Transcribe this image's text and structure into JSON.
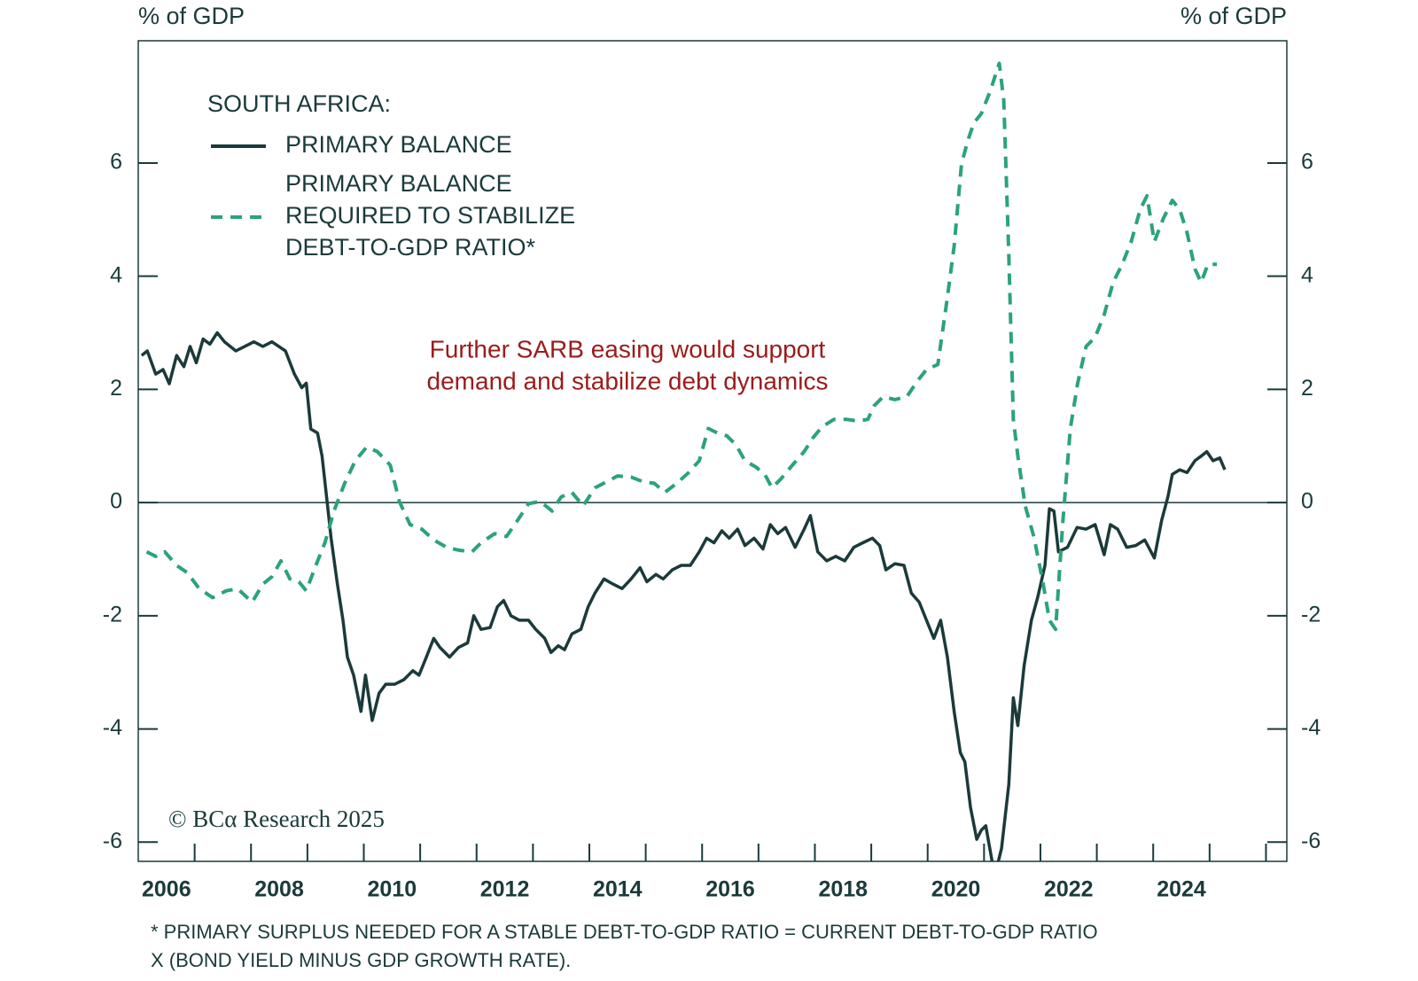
{
  "chart_data": {
    "type": "line",
    "left_axis_label": "% of GDP",
    "right_axis_label": "% of GDP",
    "legend_title": "SOUTH AFRICA:",
    "annotation": [
      "Further SARB easing would support",
      "demand and stabilize debt dynamics"
    ],
    "annotation_color": "#9b1b1b",
    "credit": "© BCα Research 2025",
    "footnote": [
      "* PRIMARY SURPLUS NEEDED FOR A STABLE DEBT-TO-GDP RATIO = CURRENT DEBT-TO-GDP RATIO",
      "X (BOND YIELD MINUS GDP GROWTH RATE)."
    ],
    "xlim": [
      2006,
      2026.37
    ],
    "xticks": [
      2006,
      2008,
      2010,
      2012,
      2014,
      2016,
      2018,
      2020,
      2022,
      2024
    ],
    "xminor_ticks": [
      2007,
      2008,
      2009,
      2010,
      2011,
      2012,
      2013,
      2014,
      2015,
      2016,
      2017,
      2018,
      2019,
      2020,
      2021,
      2022,
      2023,
      2024,
      2025,
      2026
    ],
    "ylim": [
      -6.34,
      8.16
    ],
    "yticks": [
      -6,
      -4,
      -2,
      0,
      2,
      4,
      6
    ],
    "y2lim": [
      -6.34,
      8.16
    ],
    "y2ticks": [
      -6,
      -4,
      -2,
      0,
      2,
      4,
      6
    ],
    "reference_line": 0,
    "series": [
      {
        "name": "PRIMARY BALANCE",
        "color": "#1b3a3a",
        "dashed": false,
        "x": [
          2006.06,
          2006.16,
          2006.31,
          2006.44,
          2006.55,
          2006.68,
          2006.81,
          2006.92,
          2007.03,
          2007.15,
          2007.27,
          2007.4,
          2007.53,
          2007.73,
          2007.89,
          2008.05,
          2008.21,
          2008.37,
          2008.61,
          2008.77,
          2008.9,
          2008.98,
          2009.06,
          2009.18,
          2009.26,
          2009.34,
          2009.42,
          2009.53,
          2009.63,
          2009.71,
          2009.82,
          2009.95,
          2010.03,
          2010.15,
          2010.27,
          2010.39,
          2010.55,
          2010.71,
          2010.87,
          2010.98,
          2011.11,
          2011.24,
          2011.35,
          2011.52,
          2011.68,
          2011.84,
          2011.95,
          2012.08,
          2012.24,
          2012.37,
          2012.48,
          2012.61,
          2012.76,
          2012.92,
          2013.05,
          2013.21,
          2013.32,
          2013.45,
          2013.56,
          2013.69,
          2013.85,
          2013.98,
          2014.1,
          2014.26,
          2014.42,
          2014.58,
          2014.74,
          2014.9,
          2015.02,
          2015.18,
          2015.31,
          2015.47,
          2015.63,
          2015.79,
          2015.95,
          2016.08,
          2016.21,
          2016.35,
          2016.48,
          2016.63,
          2016.76,
          2016.92,
          2017.08,
          2017.21,
          2017.34,
          2017.48,
          2017.65,
          2017.81,
          2017.92,
          2018.05,
          2018.21,
          2018.37,
          2018.53,
          2018.69,
          2018.85,
          2019.02,
          2019.15,
          2019.26,
          2019.42,
          2019.58,
          2019.71,
          2019.85,
          2019.98,
          2020.11,
          2020.23,
          2020.35,
          2020.47,
          2020.58,
          2020.66,
          2020.76,
          2020.87,
          2020.95,
          2021.03,
          2021.19,
          2021.31,
          2021.44,
          2021.52,
          2021.6,
          2021.71,
          2021.84,
          2021.95,
          2022.08,
          2022.16,
          2022.24,
          2022.32,
          2022.48,
          2022.65,
          2022.81,
          2022.97,
          2023.13,
          2023.24,
          2023.37,
          2023.53,
          2023.69,
          2023.85,
          2024.02,
          2024.15,
          2024.26,
          2024.34,
          2024.47,
          2024.6,
          2024.74,
          2024.85,
          2024.95,
          2025.06,
          2025.18,
          2025.27
        ],
        "values": [
          2.6,
          2.68,
          2.27,
          2.35,
          2.1,
          2.6,
          2.4,
          2.76,
          2.47,
          2.89,
          2.8,
          3.0,
          2.84,
          2.68,
          2.76,
          2.84,
          2.76,
          2.84,
          2.68,
          2.27,
          2.03,
          2.11,
          1.3,
          1.23,
          0.82,
          0.1,
          -0.63,
          -1.43,
          -2.08,
          -2.73,
          -3.05,
          -3.69,
          -3.05,
          -3.85,
          -3.37,
          -3.21,
          -3.21,
          -3.13,
          -2.97,
          -3.05,
          -2.73,
          -2.4,
          -2.56,
          -2.73,
          -2.56,
          -2.48,
          -2.0,
          -2.24,
          -2.21,
          -1.84,
          -1.73,
          -2.0,
          -2.08,
          -2.08,
          -2.24,
          -2.4,
          -2.65,
          -2.53,
          -2.6,
          -2.32,
          -2.24,
          -1.84,
          -1.6,
          -1.35,
          -1.44,
          -1.52,
          -1.35,
          -1.15,
          -1.4,
          -1.27,
          -1.35,
          -1.19,
          -1.11,
          -1.11,
          -0.87,
          -0.63,
          -0.71,
          -0.5,
          -0.63,
          -0.47,
          -0.76,
          -0.63,
          -0.82,
          -0.39,
          -0.55,
          -0.44,
          -0.79,
          -0.47,
          -0.23,
          -0.87,
          -1.03,
          -0.95,
          -1.03,
          -0.79,
          -0.71,
          -0.63,
          -0.76,
          -1.19,
          -1.08,
          -1.11,
          -1.6,
          -1.76,
          -2.08,
          -2.4,
          -2.08,
          -2.73,
          -3.69,
          -4.42,
          -4.58,
          -5.39,
          -5.95,
          -5.79,
          -5.71,
          -6.6,
          -6.11,
          -4.98,
          -3.45,
          -3.94,
          -2.89,
          -2.08,
          -1.68,
          -1.11,
          -0.11,
          -0.15,
          -0.87,
          -0.79,
          -0.44,
          -0.47,
          -0.39,
          -0.92,
          -0.39,
          -0.47,
          -0.79,
          -0.76,
          -0.66,
          -0.98,
          -0.31,
          0.1,
          0.5,
          0.58,
          0.53,
          0.74,
          0.82,
          0.9,
          0.74,
          0.79,
          0.58
        ]
      },
      {
        "name": "PRIMARY BALANCE\nREQUIRED TO STABILIZE\nDEBT-TO-GDP RATIO*",
        "color": "#2ba37a",
        "dashed": true,
        "x": [
          2006.15,
          2006.31,
          2006.47,
          2006.68,
          2006.87,
          2007.08,
          2007.32,
          2007.56,
          2007.76,
          2008.02,
          2008.21,
          2008.37,
          2008.53,
          2008.69,
          2008.85,
          2008.98,
          2009.15,
          2009.31,
          2009.47,
          2009.66,
          2009.85,
          2010.05,
          2010.24,
          2010.47,
          2010.63,
          2010.82,
          2011.03,
          2011.24,
          2011.47,
          2011.68,
          2011.92,
          2012.08,
          2012.32,
          2012.53,
          2012.73,
          2012.92,
          2013.13,
          2013.34,
          2013.5,
          2013.69,
          2013.89,
          2014.1,
          2014.31,
          2014.5,
          2014.74,
          2014.95,
          2015.15,
          2015.34,
          2015.55,
          2015.76,
          2015.95,
          2016.11,
          2016.27,
          2016.44,
          2016.6,
          2016.76,
          2016.95,
          2017.11,
          2017.24,
          2017.4,
          2017.6,
          2017.81,
          2017.97,
          2018.13,
          2018.34,
          2018.56,
          2018.77,
          2018.94,
          2019.05,
          2019.21,
          2019.42,
          2019.63,
          2019.82,
          2019.98,
          2020.18,
          2020.34,
          2020.47,
          2020.6,
          2020.71,
          2020.82,
          2020.95,
          2021.11,
          2021.27,
          2021.35,
          2021.44,
          2021.52,
          2021.6,
          2021.73,
          2021.89,
          2022.05,
          2022.16,
          2022.27,
          2022.4,
          2022.53,
          2022.66,
          2022.81,
          2022.97,
          2023.13,
          2023.29,
          2023.45,
          2023.61,
          2023.77,
          2023.89,
          2024.02,
          2024.18,
          2024.34,
          2024.47,
          2024.6,
          2024.74,
          2024.85,
          2024.97,
          2025.13
        ],
        "values": [
          -0.87,
          -0.95,
          -0.87,
          -1.11,
          -1.24,
          -1.52,
          -1.68,
          -1.56,
          -1.52,
          -1.76,
          -1.44,
          -1.31,
          -1.03,
          -1.35,
          -1.4,
          -1.56,
          -1.11,
          -0.71,
          -0.15,
          0.34,
          0.74,
          0.98,
          0.9,
          0.66,
          0.02,
          -0.39,
          -0.47,
          -0.66,
          -0.79,
          -0.84,
          -0.87,
          -0.71,
          -0.55,
          -0.6,
          -0.31,
          -0.02,
          0.02,
          -0.15,
          0.1,
          0.18,
          -0.06,
          0.26,
          0.37,
          0.47,
          0.45,
          0.37,
          0.34,
          0.18,
          0.34,
          0.53,
          0.74,
          1.31,
          1.23,
          1.18,
          1.02,
          0.74,
          0.63,
          0.5,
          0.26,
          0.42,
          0.66,
          0.9,
          1.15,
          1.34,
          1.47,
          1.47,
          1.44,
          1.47,
          1.71,
          1.87,
          1.82,
          1.87,
          2.15,
          2.35,
          2.44,
          3.56,
          4.53,
          5.98,
          6.39,
          6.71,
          6.87,
          7.27,
          7.76,
          7.11,
          4.37,
          1.47,
          0.82,
          -0.06,
          -0.63,
          -1.44,
          -2.08,
          -2.24,
          -0.31,
          1.31,
          2.11,
          2.76,
          2.92,
          3.32,
          3.89,
          4.21,
          4.61,
          5.18,
          5.42,
          4.61,
          5.02,
          5.34,
          5.18,
          4.77,
          4.13,
          3.89,
          4.21,
          4.21
        ]
      }
    ]
  }
}
